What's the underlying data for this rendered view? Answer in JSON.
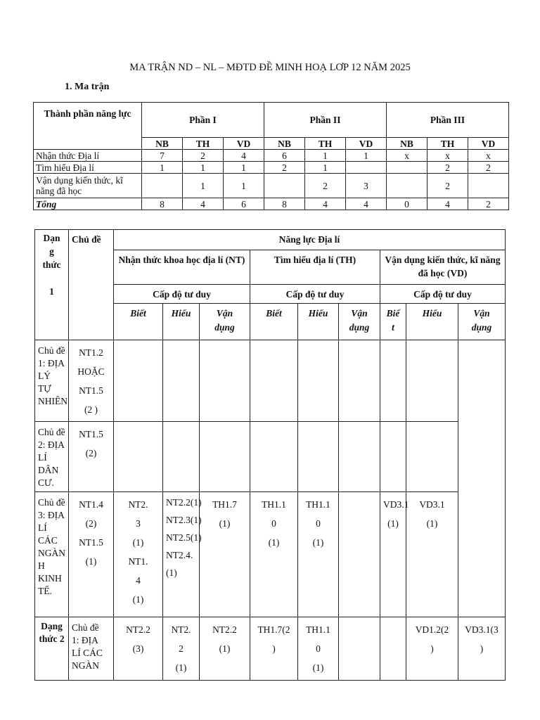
{
  "title": "MA TRẬN ND – NL – MĐTD ĐỀ MINH HOẠ LƠP 12 NĂM 2025",
  "section": "1. Ma trận",
  "table1": {
    "header": "Thành phần năng lực",
    "parts": [
      "Phần I",
      "Phần II",
      "Phần III"
    ],
    "levels": [
      "NB",
      "TH",
      "VD",
      "NB",
      "TH",
      "VD",
      "NB",
      "TH",
      "VD"
    ],
    "rows": [
      {
        "label": "Nhận thức Địa lí",
        "values": [
          "7",
          "2",
          "4",
          "6",
          "1",
          "1",
          "x",
          "x",
          "x"
        ]
      },
      {
        "label": "Tìm hiểu Địa lí",
        "values": [
          "1",
          "1",
          "1",
          "2",
          "1",
          "",
          "",
          "2",
          "2"
        ]
      },
      {
        "label": "Vận dụng kiến thức, kĩ năng đã học",
        "values": [
          "",
          "1",
          "1",
          "",
          "2",
          "3",
          "",
          "2",
          ""
        ]
      },
      {
        "label": "Tổng",
        "values": [
          "8",
          "4",
          "6",
          "8",
          "4",
          "4",
          "0",
          "4",
          "2"
        ]
      }
    ]
  },
  "table2": {
    "dang_thuc_header": "Dạn\ng\nthức\n\n1",
    "chu_de_header": "Chủ đề",
    "nang_luc": "Năng lực Địa lí",
    "groups": [
      "Nhận thức khoa học địa lí (NT)",
      "Tìm hiểu địa lí  (TH)",
      "Vận dụng kiến thức, kĩ năng đã học (VD)"
    ],
    "cap_do": "Cấp độ tư duy",
    "sub": [
      "Biết",
      "Hiểu",
      "Vận\ndụng",
      "Biết",
      "Hiểu",
      "Vận\ndụng",
      "Biế\nt",
      "Hiểu",
      "Vận\ndụng"
    ],
    "rows": [
      {
        "topic": "Chủ đề\n1: ĐỊA\nLÝ TỰ\nNHIÊN",
        "cells": [
          "NT1.2\nHOẶC\nNT1.5\n(2 )",
          "",
          "",
          "",
          "",
          "",
          "",
          "",
          ""
        ]
      },
      {
        "topic": "Chủ đề\n2: ĐỊA\nLÍ DÂN\nCƯ.",
        "cells": [
          "NT1.5\n(2)",
          "",
          "",
          "",
          "",
          "",
          "",
          "",
          ""
        ]
      },
      {
        "topic": "Chủ đề\n3: ĐỊA\nLÍ CÁC\nNGÀN\nH\nKINH\nTẾ.",
        "cells": [
          "NT1.4\n(2)\nNT1.5\n(1)",
          "NT2.\n3\n(1)\nNT1.\n4\n(1)",
          "NT2.2(1)\nNT2.3(1)\nNT2.5(1)\nNT2.4.\n(1)",
          "TH1.7\n(1)",
          "TH1.1\n0\n(1)",
          "TH1.1\n0\n(1)",
          "",
          "VD3.1\n(1)",
          "VD3.1\n(1)"
        ]
      },
      {
        "dang_thuc": "Dạng\nthức 2",
        "topic": "Chủ đề\n1: ĐỊA\nLÍ CÁC\nNGÀN",
        "cells": [
          "NT2.2\n(3)",
          "NT2.\n2\n(1)",
          "NT2.2\n(1)",
          "TH1.7(2\n)",
          "TH1.1\n0\n(1)",
          "",
          "",
          "VD1.2(2\n)",
          "VD3.1(3\n)"
        ]
      }
    ]
  }
}
